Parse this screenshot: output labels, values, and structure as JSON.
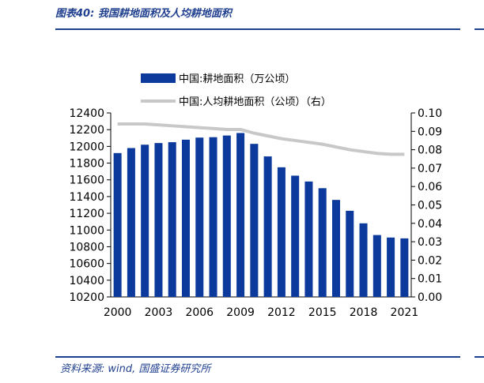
{
  "page": {
    "title": "图表40:  我国耕地面积及人均耕地面积",
    "source_label": "资料来源:",
    "source_text": "wind, 国盛证券研究所"
  },
  "colors": {
    "bar": "#0b3a9c",
    "line": "#c8c8c8",
    "rule": "#1f3f8f"
  },
  "chart_data": {
    "type": "bar",
    "title": "",
    "x": [
      2000,
      2001,
      2002,
      2003,
      2004,
      2005,
      2006,
      2007,
      2008,
      2009,
      2010,
      2011,
      2012,
      2013,
      2014,
      2015,
      2016,
      2017,
      2018,
      2019,
      2020,
      2021
    ],
    "x_tick_labels": [
      "2000",
      "2003",
      "2006",
      "2009",
      "2012",
      "2015",
      "2018",
      "2021"
    ],
    "y_left_ticks": [
      "12400",
      "12200",
      "12000",
      "11800",
      "11600",
      "11400",
      "11200",
      "11000",
      "10800",
      "10600",
      "10400",
      "10200"
    ],
    "y_right_ticks": [
      "0.10",
      "0.09",
      "0.08",
      "0.07",
      "0.06",
      "0.05",
      "0.04",
      "0.03",
      "0.02",
      "0.01",
      "0.00"
    ],
    "ylim_left": [
      10200,
      12400
    ],
    "ylim_right": [
      0.0,
      0.1
    ],
    "series": [
      {
        "name": "中国:耕地面积（万公顷）",
        "kind": "bar",
        "axis": "left",
        "values": [
          11920,
          11980,
          12020,
          12040,
          12050,
          12080,
          12105,
          12110,
          12130,
          12160,
          12030,
          11880,
          11750,
          11650,
          11580,
          11500,
          11360,
          11230,
          11080,
          10940,
          10910,
          10900
        ]
      },
      {
        "name": "中国:人均耕地面积（公顷）（右）",
        "kind": "line",
        "axis": "right",
        "values": [
          0.094,
          0.094,
          0.094,
          0.0935,
          0.093,
          0.0925,
          0.092,
          0.0915,
          0.091,
          0.091,
          0.089,
          0.0875,
          0.086,
          0.085,
          0.084,
          0.083,
          0.0815,
          0.08,
          0.079,
          0.078,
          0.0775,
          0.0775
        ]
      }
    ],
    "legend_position": "top",
    "grid": false
  }
}
